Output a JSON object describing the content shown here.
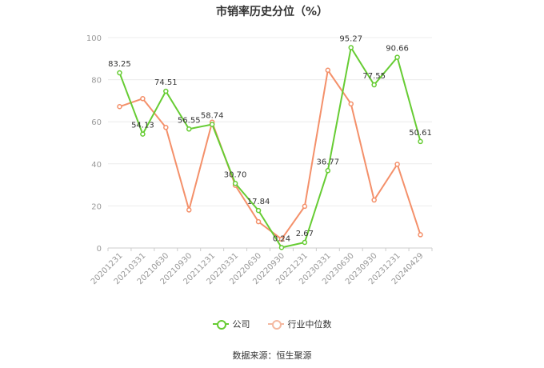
{
  "chart_data": {
    "type": "line",
    "title": "市销率历史分位（%）",
    "categories": [
      "20201231",
      "20210331",
      "20210630",
      "20210930",
      "20211231",
      "20220331",
      "20220630",
      "20220930",
      "20221231",
      "20230331",
      "20230630",
      "20230930",
      "20231231",
      "20240429"
    ],
    "ylim": [
      0,
      100
    ],
    "yticks": [
      0,
      20,
      40,
      60,
      80,
      100
    ],
    "grid": true,
    "legend_position": "bottom",
    "series": [
      {
        "name": "公司",
        "color": "#66cc33",
        "values": [
          83.25,
          54.13,
          74.51,
          56.55,
          58.74,
          30.7,
          17.84,
          0.24,
          2.67,
          36.77,
          95.27,
          77.55,
          90.66,
          50.61
        ],
        "labels": [
          "83.25",
          "54.13",
          "74.51",
          "56.55",
          "58.74",
          "30.70",
          "17.84",
          "0.24",
          "2.67",
          "36.77",
          "95.27",
          "77.55",
          "90.66",
          "50.61"
        ]
      },
      {
        "name": "行业中位数",
        "color": "#f4906a",
        "values": [
          67.2,
          71.0,
          57.3,
          18.1,
          59.8,
          29.8,
          12.5,
          4.2,
          19.8,
          84.5,
          68.5,
          22.8,
          39.8,
          6.3
        ]
      }
    ]
  },
  "source": "数据来源：恒生聚源"
}
